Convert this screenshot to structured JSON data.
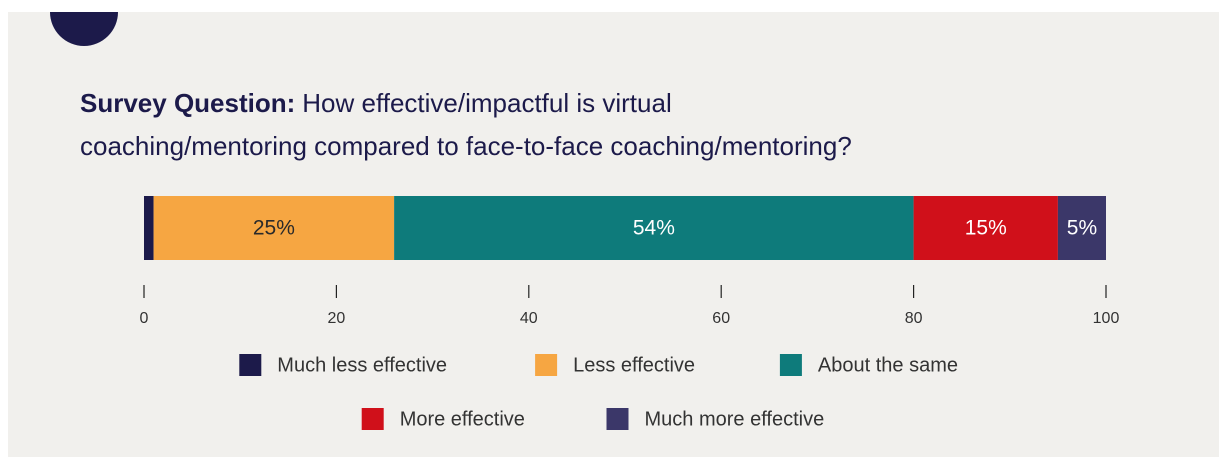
{
  "chart_data": {
    "type": "bar",
    "orientation": "horizontal",
    "stacked": true,
    "title_lead": "Survey Question:",
    "title": [
      "How effective/impactful is virtual",
      "coaching/mentoring compared to face-to-face coaching/mentoring?"
    ],
    "series": [
      {
        "name": "Much less effective",
        "color": "#1c1a4a",
        "label_color": "#ffffff",
        "values": [
          1
        ],
        "value_labels": [
          null
        ]
      },
      {
        "name": "Less effective",
        "color": "#f6a642",
        "label_color": "#2a2a2a",
        "values": [
          25
        ],
        "value_labels": [
          "25%"
        ]
      },
      {
        "name": "About the same",
        "color": "#0e7b7b",
        "label_color": "#ffffff",
        "values": [
          54
        ],
        "value_labels": [
          "54%"
        ]
      },
      {
        "name": "More effective",
        "color": "#d0101a",
        "label_color": "#ffffff",
        "values": [
          15
        ],
        "value_labels": [
          "15%"
        ]
      },
      {
        "name": "Much more effective",
        "color": "#3b3769",
        "label_color": "#ffffff",
        "values": [
          5
        ],
        "value_labels": [
          "5%"
        ]
      }
    ],
    "xlim": [
      0,
      100
    ],
    "xticks": [
      0,
      20,
      40,
      60,
      80,
      100
    ]
  }
}
